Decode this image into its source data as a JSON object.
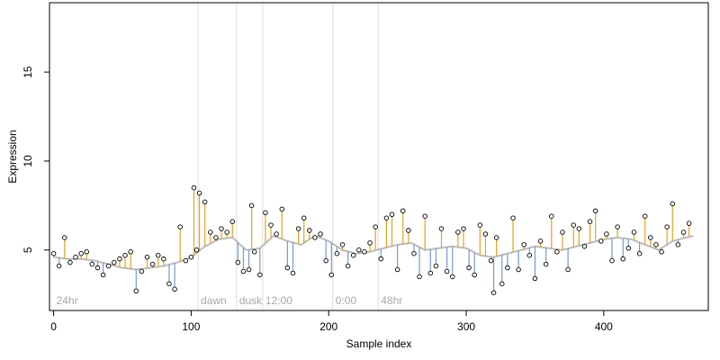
{
  "chart_data": {
    "type": "scatter",
    "title": "",
    "xlabel": "Sample index",
    "ylabel": "Expression",
    "xlim": [
      -3,
      476
    ],
    "ylim": [
      1.6,
      18.9
    ],
    "x_ticks": [
      0,
      100,
      200,
      300,
      400
    ],
    "y_ticks": [
      5,
      10,
      15
    ],
    "grid": false,
    "legend": "none",
    "colors": {
      "above_fit": "#e8a020",
      "below_fit": "#7799cc",
      "fit_line": "#bcbcbc",
      "phase_line": "#dddddd",
      "phase_label": "#a8a8a8",
      "point_fill": "#ffffff",
      "point_stroke": "#000000"
    },
    "phase_markers": [
      {
        "x": 0,
        "label": "24hr"
      },
      {
        "x": 105,
        "label": "dawn"
      },
      {
        "x": 133,
        "label": "dusk"
      },
      {
        "x": 152,
        "label": "12:00"
      },
      {
        "x": 203,
        "label": "0:00"
      },
      {
        "x": 236,
        "label": "48hr"
      }
    ],
    "fit_anchors": {
      "x": [
        0,
        10,
        20,
        30,
        40,
        50,
        60,
        70,
        80,
        90,
        100,
        110,
        120,
        130,
        140,
        150,
        160,
        170,
        180,
        190,
        200,
        210,
        220,
        230,
        240,
        250,
        260,
        270,
        280,
        290,
        300,
        310,
        320,
        330,
        340,
        350,
        360,
        370,
        380,
        390,
        400,
        410,
        420,
        430,
        440,
        450,
        460,
        465
      ],
      "y": [
        4.6,
        4.5,
        4.5,
        4.4,
        4.2,
        4.0,
        3.9,
        4.0,
        4.1,
        4.3,
        4.6,
        5.2,
        5.6,
        5.7,
        5.0,
        5.1,
        5.8,
        5.5,
        5.3,
        5.8,
        5.5,
        5.0,
        4.8,
        4.9,
        5.1,
        5.3,
        5.4,
        5.0,
        5.1,
        5.2,
        5.1,
        4.7,
        4.6,
        4.8,
        5.0,
        5.2,
        5.1,
        5.0,
        5.2,
        5.4,
        5.6,
        5.7,
        5.6,
        5.3,
        5.0,
        5.5,
        5.7,
        5.8
      ]
    },
    "points": {
      "x": [
        0,
        4,
        8,
        12,
        16,
        20,
        24,
        28,
        32,
        36,
        40,
        44,
        48,
        52,
        56,
        60,
        64,
        68,
        72,
        76,
        80,
        84,
        88,
        92,
        96,
        100,
        102,
        104,
        106,
        110,
        114,
        118,
        122,
        126,
        130,
        134,
        138,
        142,
        144,
        146,
        150,
        154,
        158,
        162,
        166,
        170,
        174,
        178,
        182,
        186,
        190,
        194,
        198,
        202,
        206,
        210,
        214,
        218,
        222,
        226,
        230,
        234,
        238,
        242,
        246,
        250,
        254,
        258,
        262,
        266,
        270,
        274,
        278,
        282,
        286,
        290,
        294,
        298,
        302,
        306,
        310,
        314,
        318,
        320,
        322,
        326,
        330,
        334,
        338,
        342,
        346,
        350,
        354,
        358,
        362,
        366,
        370,
        374,
        378,
        382,
        386,
        390,
        394,
        398,
        402,
        406,
        410,
        414,
        418,
        422,
        426,
        430,
        434,
        438,
        442,
        446,
        450,
        454,
        458,
        462
      ],
      "y": [
        4.8,
        4.1,
        5.7,
        4.3,
        4.6,
        4.8,
        4.9,
        4.2,
        4.0,
        3.6,
        4.1,
        4.3,
        4.5,
        4.7,
        4.9,
        2.7,
        3.8,
        4.6,
        4.2,
        4.7,
        4.5,
        3.1,
        2.8,
        6.3,
        4.4,
        4.6,
        8.5,
        5.0,
        8.2,
        7.7,
        6.0,
        5.7,
        6.2,
        6.0,
        6.6,
        4.3,
        3.8,
        3.9,
        7.5,
        4.9,
        3.6,
        7.1,
        6.4,
        5.9,
        7.3,
        4.0,
        3.7,
        6.2,
        6.8,
        6.1,
        5.7,
        5.9,
        4.4,
        3.6,
        4.8,
        5.3,
        4.1,
        4.7,
        5.0,
        4.9,
        5.4,
        6.3,
        4.5,
        6.8,
        7.0,
        3.9,
        7.2,
        6.1,
        4.8,
        3.5,
        6.9,
        3.7,
        4.1,
        6.2,
        3.8,
        3.5,
        6.0,
        6.2,
        4.0,
        3.6,
        6.4,
        5.9,
        4.4,
        2.6,
        5.7,
        3.1,
        4.0,
        6.8,
        3.9,
        5.3,
        4.7,
        3.4,
        5.5,
        4.2,
        6.9,
        4.9,
        6.0,
        3.9,
        6.4,
        6.2,
        5.2,
        6.6,
        7.2,
        5.5,
        5.9,
        4.4,
        6.3,
        4.5,
        5.1,
        6.0,
        4.8,
        6.9,
        5.7,
        5.3,
        4.9,
        6.3,
        7.6,
        5.3,
        6.0,
        6.5
      ]
    }
  }
}
